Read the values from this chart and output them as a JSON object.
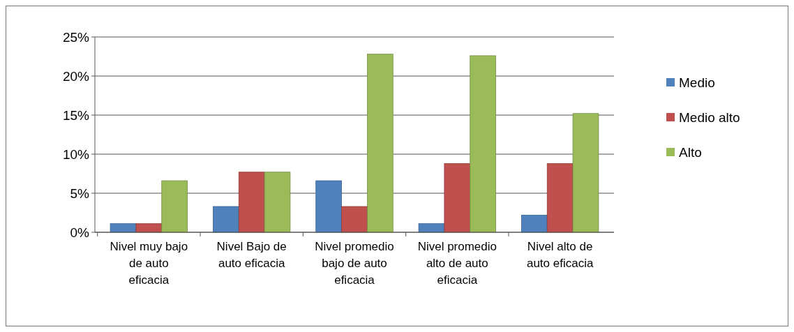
{
  "chart_data": {
    "type": "bar",
    "categories": [
      "Nivel muy bajo de auto eficacia",
      "Nivel Bajo de auto eficacia",
      "Nivel promedio bajo de auto eficacia",
      "Nivel promedio alto de auto eficacia",
      "Nivel alto de auto eficacia"
    ],
    "series": [
      {
        "name": "Medio",
        "color": "#4f81bd",
        "values": [
          1.1,
          3.3,
          6.6,
          1.1,
          2.2
        ]
      },
      {
        "name": "Medio alto",
        "color": "#c0504d",
        "values": [
          1.1,
          7.7,
          3.3,
          8.8,
          8.8
        ]
      },
      {
        "name": "Alto",
        "color": "#9bbb59",
        "values": [
          6.6,
          7.7,
          22.8,
          22.6,
          15.2
        ]
      }
    ],
    "ylim": [
      0,
      25
    ],
    "yticks": [
      {
        "value": 0,
        "label": "0%"
      },
      {
        "value": 5,
        "label": "5%"
      },
      {
        "value": 10,
        "label": "10%"
      },
      {
        "value": 15,
        "label": "15%"
      },
      {
        "value": 20,
        "label": "20%"
      },
      {
        "value": 25,
        "label": "25%"
      }
    ],
    "grid": "y",
    "legend": "right"
  }
}
